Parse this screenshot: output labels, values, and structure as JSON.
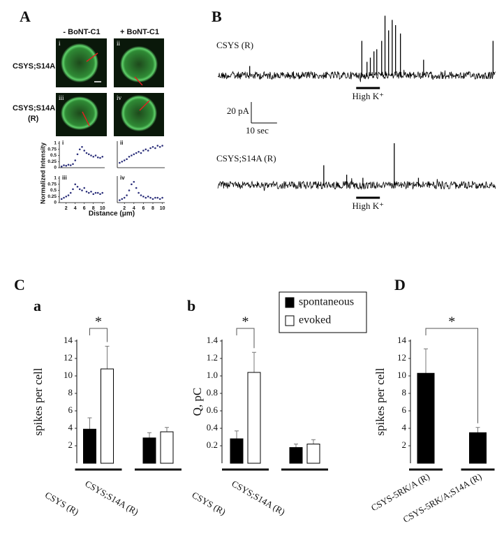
{
  "figure": {
    "panel_labels": [
      "A",
      "B",
      "C",
      "D"
    ],
    "subpanel_labels": [
      "a",
      "b"
    ],
    "column_labels": [
      "- BoNT-C1",
      "+ BoNT-C1"
    ],
    "row_labels": [
      [
        "CSYS;S14A"
      ],
      [
        "CSYS;S14A",
        "(R)"
      ]
    ],
    "image_labels": [
      "i",
      "ii",
      "iii",
      "iv"
    ],
    "intensity_ylabel": "Normalized Intensity",
    "intensity_xlabel": "Distance (μm)"
  },
  "chart_data": [
    {
      "type": "scatter",
      "title": "i",
      "color": "#2b2f7a",
      "x": [
        1,
        1.5,
        2,
        2.5,
        3,
        3.5,
        4,
        4.5,
        5,
        5.5,
        6,
        6.5,
        7,
        7.5,
        8,
        8.5,
        9,
        9.5,
        10
      ],
      "values": [
        0.05,
        0.1,
        0.08,
        0.12,
        0.1,
        0.15,
        0.3,
        0.55,
        0.75,
        0.85,
        0.7,
        0.6,
        0.55,
        0.5,
        0.45,
        0.5,
        0.42,
        0.4,
        0.45
      ],
      "xlim": [
        0.5,
        10.5
      ],
      "ylim": [
        0,
        1
      ],
      "yticks": [
        0,
        0.25,
        0.5,
        0.75,
        1
      ]
    },
    {
      "type": "scatter",
      "title": "ii",
      "color": "#2b2f7a",
      "x": [
        1,
        1.5,
        2,
        2.5,
        3,
        3.5,
        4,
        4.5,
        5,
        5.5,
        6,
        6.5,
        7,
        7.5,
        8,
        8.5,
        9,
        9.5,
        10
      ],
      "values": [
        0.2,
        0.25,
        0.3,
        0.35,
        0.45,
        0.5,
        0.55,
        0.6,
        0.65,
        0.6,
        0.7,
        0.75,
        0.7,
        0.8,
        0.85,
        0.8,
        0.9,
        0.85,
        0.9
      ],
      "xlim": [
        0.5,
        10.5
      ],
      "ylim": [
        0,
        1
      ]
    },
    {
      "type": "scatter",
      "title": "iii",
      "color": "#2b2f7a",
      "x": [
        1,
        1.5,
        2,
        2.5,
        3,
        3.5,
        4,
        4.5,
        5,
        5.5,
        6,
        6.5,
        7,
        7.5,
        8,
        8.5,
        9,
        9.5,
        10
      ],
      "values": [
        0.15,
        0.2,
        0.25,
        0.3,
        0.4,
        0.55,
        0.75,
        0.65,
        0.55,
        0.5,
        0.6,
        0.45,
        0.4,
        0.45,
        0.35,
        0.4,
        0.4,
        0.35,
        0.4
      ],
      "xlim": [
        0.5,
        10.5
      ],
      "ylim": [
        0,
        1
      ],
      "yticks": [
        0,
        0.25,
        0.5,
        0.75,
        1
      ],
      "xticks": [
        2,
        4,
        6,
        8,
        10
      ]
    },
    {
      "type": "scatter",
      "title": "iv",
      "color": "#2b2f7a",
      "x": [
        1,
        1.5,
        2,
        2.5,
        3,
        3.5,
        4,
        4.5,
        5,
        5.5,
        6,
        6.5,
        7,
        7.5,
        8,
        8.5,
        9,
        9.5,
        10
      ],
      "values": [
        0.1,
        0.15,
        0.2,
        0.3,
        0.5,
        0.75,
        0.85,
        0.6,
        0.4,
        0.3,
        0.25,
        0.2,
        0.25,
        0.2,
        0.15,
        0.2,
        0.2,
        0.15,
        0.2
      ],
      "xlim": [
        0.5,
        10.5
      ],
      "ylim": [
        0,
        1
      ],
      "xticks": [
        2,
        4,
        6,
        8,
        10
      ]
    },
    {
      "type": "trace",
      "title": "CSYS (R)",
      "xlim": [
        0,
        108
      ],
      "spike_times": [
        12.4,
        56,
        58,
        59.3,
        60.7,
        61.8,
        63.7,
        65,
        66.4,
        67.8,
        69.1,
        71,
        80,
        107
      ],
      "spike_amplitudes": [
        9,
        33,
        13,
        17,
        23,
        25,
        33,
        57,
        43,
        53,
        48,
        40,
        15,
        33
      ],
      "stimulus": {
        "label": "High K⁺",
        "start": 53.8,
        "end": 63
      },
      "scale_bar": {
        "y": 20,
        "y_label": "20 pA",
        "x": 10,
        "x_label": "10 sec"
      }
    },
    {
      "type": "trace",
      "title": "CSYS;S14A (R)",
      "xlim": [
        0,
        108
      ],
      "spike_times": [
        41.2,
        50.1,
        56.4,
        68.6,
        78
      ],
      "spike_amplitudes": [
        19,
        10,
        7,
        40,
        7
      ],
      "stimulus": {
        "label": "High K⁺",
        "start": 53.8,
        "end": 63
      }
    },
    {
      "type": "bar",
      "ylabel": "spikes per cell",
      "categories": [
        "CSYS (R)",
        "CSYS;S14A (R)"
      ],
      "series": [
        {
          "color": "#000000",
          "values": [
            3.9,
            2.9
          ],
          "errors": [
            1.3,
            0.6
          ]
        },
        {
          "color": "#ffffff",
          "values": [
            10.8,
            3.6
          ],
          "errors": [
            2.6,
            0.5
          ]
        }
      ],
      "ylim": [
        0,
        14
      ],
      "yticks": [
        2,
        4,
        6,
        8,
        10,
        12,
        14
      ],
      "annotation": "*"
    },
    {
      "type": "bar",
      "ylabel": "Q, pC",
      "categories": [
        "CSYS (R)",
        "CSYS;S14A (R)"
      ],
      "series": [
        {
          "name": "spontaneous",
          "color": "#000000",
          "values": [
            0.28,
            0.18
          ],
          "errors": [
            0.09,
            0.04
          ]
        },
        {
          "name": "evoked",
          "color": "#ffffff",
          "values": [
            1.04,
            0.22
          ],
          "errors": [
            0.23,
            0.05
          ]
        }
      ],
      "ylim": [
        0,
        1.4
      ],
      "yticks": [
        0.2,
        0.4,
        0.6,
        0.8,
        {
          "value": 1,
          "label": "1.0"
        },
        1.2,
        1.4
      ],
      "annotation": "*",
      "legend": "top-right"
    },
    {
      "type": "bar",
      "ylabel": "spikes per cell",
      "categories": [
        "CSYS-5RK/A (R)",
        "CSYS-5RK/A;S14A (R)"
      ],
      "series": [
        {
          "color": "#000000",
          "values": [
            10.3,
            3.5
          ],
          "errors": [
            2.8,
            0.6
          ]
        }
      ],
      "ylim": [
        0,
        14
      ],
      "yticks": [
        2,
        4,
        6,
        8,
        10,
        12,
        14
      ],
      "annotation": "*",
      "bracket": "categories"
    }
  ]
}
